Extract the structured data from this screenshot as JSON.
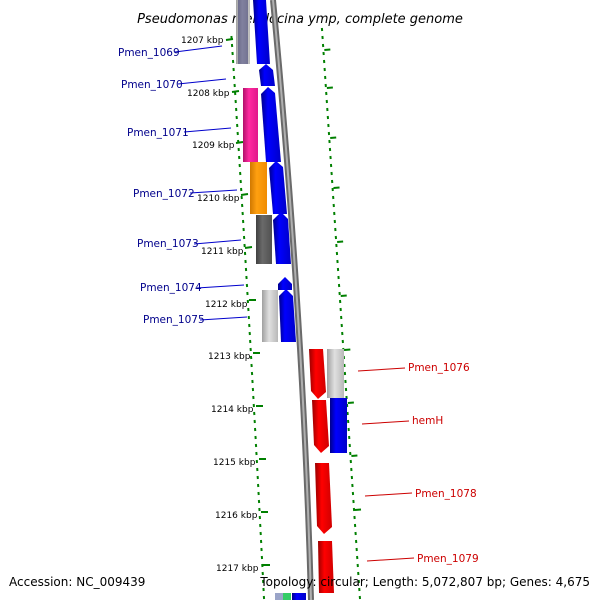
{
  "title": "Pseudomonas mendocina ymp, complete genome",
  "footer": {
    "accession": "Accession: NC_009439",
    "topology": "Topology: circular; Length: 5,072,807 bp; Genes: 4,675"
  },
  "kbp_ticks": [
    "1207 kbp",
    "1208 kbp",
    "1209 kbp",
    "1210 kbp",
    "1211 kbp",
    "1212 kbp",
    "1213 kbp",
    "1214 kbp",
    "1215 kbp",
    "1216 kbp",
    "1217 kbp"
  ],
  "genes_left": [
    "Pmen_1069",
    "Pmen_1070",
    "Pmen_1071",
    "Pmen_1072",
    "Pmen_1073",
    "Pmen_1074",
    "Pmen_1075"
  ],
  "genes_right": [
    "Pmen_1076",
    "hemH",
    "Pmen_1078",
    "Pmen_1079"
  ],
  "colors": {
    "forward_strand": "#0000ee",
    "reverse_strand": "#ee0000",
    "left_label": "#00008b",
    "right_label": "#cc0000",
    "backbone": "#808080",
    "ticks": "#008000",
    "pink": "#ee1a8c",
    "orange": "#ff9a00",
    "darkgray": "#555555",
    "lightgray": "#c0c0c0"
  }
}
